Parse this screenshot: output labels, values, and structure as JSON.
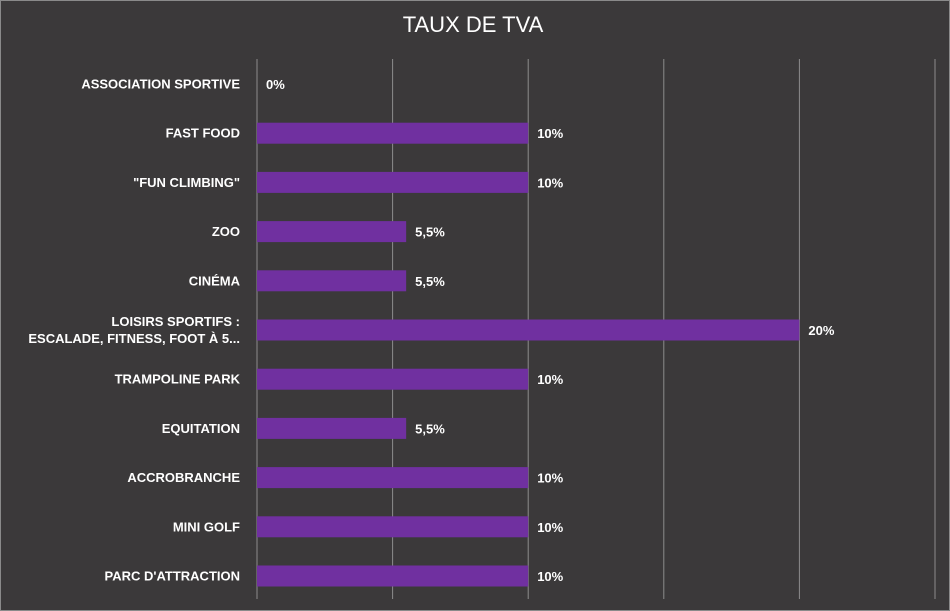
{
  "chart_data": {
    "type": "bar",
    "orientation": "horizontal",
    "title": "TAUX DE TVA",
    "categories": [
      "ASSOCIATION SPORTIVE",
      "FAST FOOD",
      "\"FUN CLIMBING\"",
      "ZOO",
      "CINÉMA",
      "LOISIRS SPORTIFS : ESCALADE, FITNESS, FOOT À 5...",
      "TRAMPOLINE PARK",
      "EQUITATION",
      "ACCROBRANCHE",
      "MINI GOLF",
      "PARC D'ATTRACTION"
    ],
    "category_lines": [
      [
        "ASSOCIATION SPORTIVE"
      ],
      [
        "FAST FOOD"
      ],
      [
        "\"FUN CLIMBING\""
      ],
      [
        "ZOO"
      ],
      [
        "CINÉMA"
      ],
      [
        "LOISIRS SPORTIFS :",
        "ESCALADE, FITNESS, FOOT À 5..."
      ],
      [
        "TRAMPOLINE PARK"
      ],
      [
        "EQUITATION"
      ],
      [
        "ACCROBRANCHE"
      ],
      [
        "MINI GOLF"
      ],
      [
        "PARC D'ATTRACTION"
      ]
    ],
    "values": [
      0,
      10,
      10,
      5.5,
      5.5,
      20,
      10,
      5.5,
      10,
      10,
      10
    ],
    "data_labels": [
      "0%",
      "10%",
      "10%",
      "5,5%",
      "5,5%",
      "20%",
      "10%",
      "5,5%",
      "10%",
      "10%",
      "10%"
    ],
    "xlim": [
      0,
      25
    ],
    "gridlines": [
      0,
      5,
      10,
      15,
      20,
      25
    ],
    "grid": true,
    "legend": false,
    "colors": {
      "background": "#3b393a",
      "bar": "#7030a0",
      "text": "#ffffff",
      "grid": "#8c8c8c"
    }
  }
}
